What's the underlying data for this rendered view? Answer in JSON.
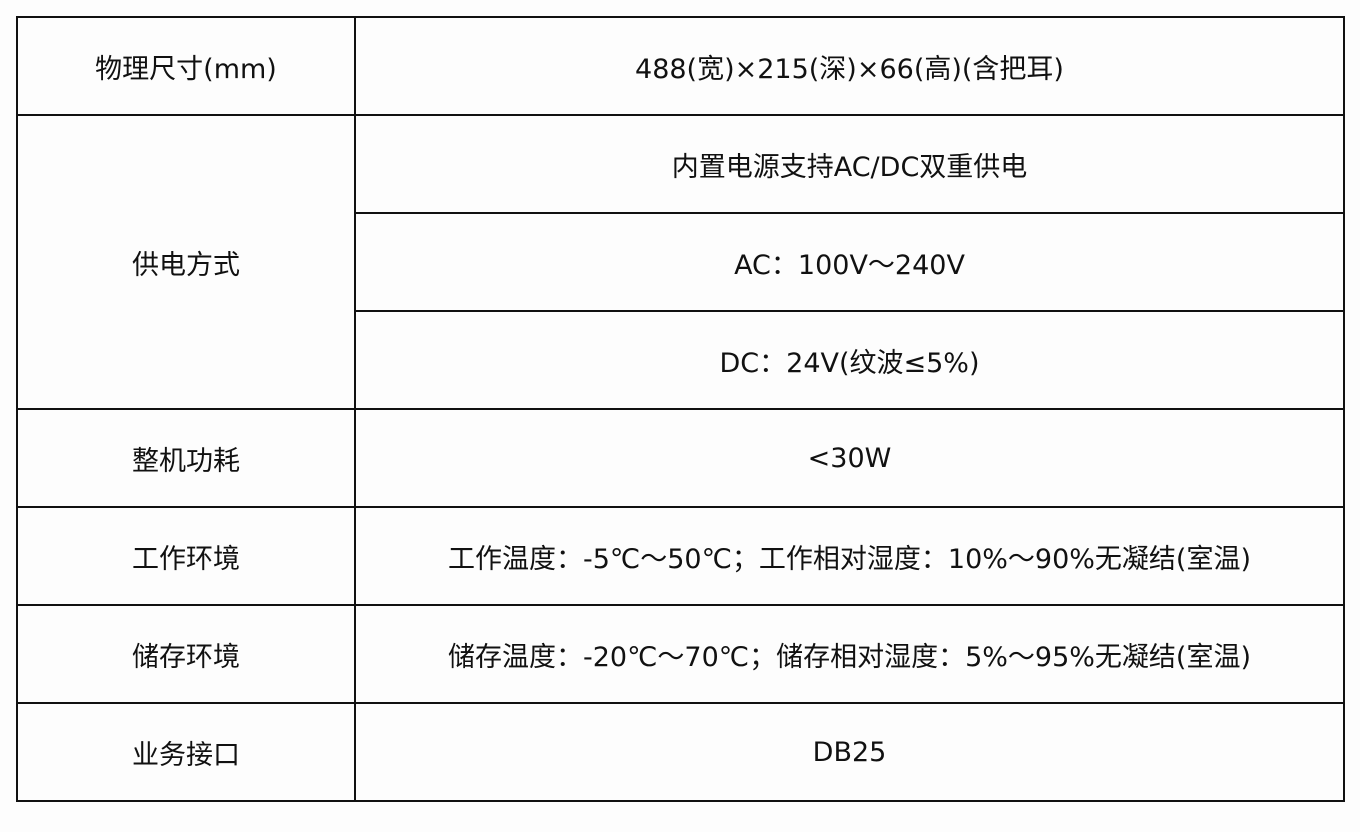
{
  "rows": [
    {
      "label": "物理尺寸(mm)",
      "values": [
        "488(宽)×215(深)×66(高)(含把耳)"
      ]
    },
    {
      "label": "供电方式",
      "values": [
        "内置电源支持AC/DC双重供电",
        "AC：100V～240V",
        "DC：24V(纹波≤5%)"
      ]
    },
    {
      "label": "整机功耗",
      "values": [
        "<30W"
      ]
    },
    {
      "label": "工作环境",
      "values": [
        "工作温度：-5℃～50℃；工作相对湿度：10%～90%无凝结(室温)"
      ]
    },
    {
      "label": "储存环境",
      "values": [
        "储存温度：-20℃～70℃；储存相对湿度：5%～95%无凝结(室温)"
      ]
    },
    {
      "label": "业务接口",
      "values": [
        "DB25"
      ]
    }
  ]
}
